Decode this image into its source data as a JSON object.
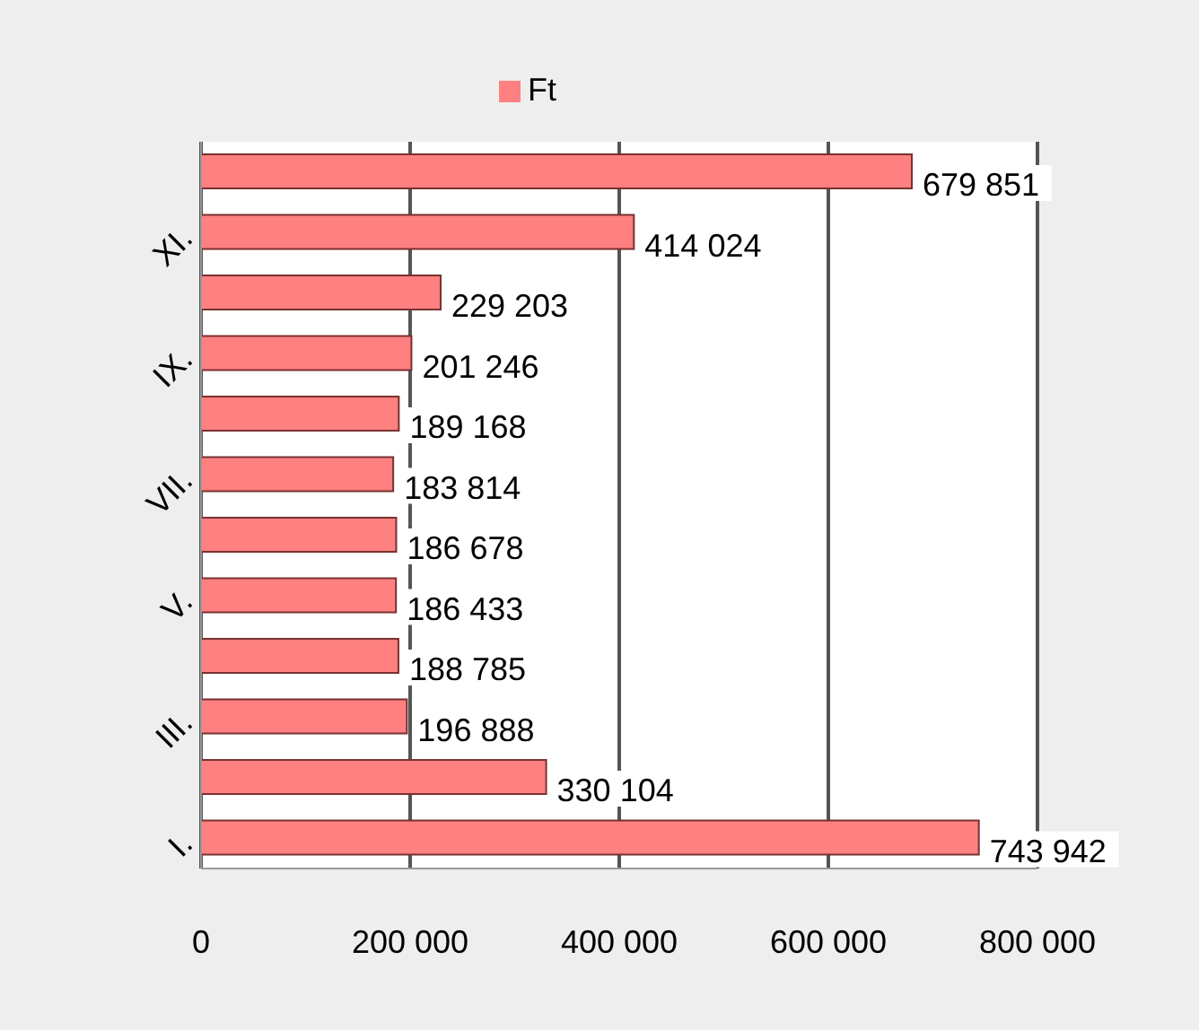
{
  "chart_data": {
    "type": "bar",
    "orientation": "horizontal",
    "categories": [
      null,
      "XI.",
      null,
      "IX.",
      null,
      "VII.",
      null,
      "V.",
      null,
      "III.",
      null,
      "I."
    ],
    "series": [
      {
        "name": "Ft",
        "color": "#ff8080",
        "values": [
          679851,
          414024,
          229203,
          201246,
          189168,
          183814,
          186678,
          186433,
          188785,
          196888,
          330104,
          743942
        ],
        "value_labels": [
          "679 851",
          "414 024",
          "229 203",
          "201 246",
          "189 168",
          "183 814",
          "186 678",
          "186 433",
          "188 785",
          "196 888",
          "330 104",
          "743 942"
        ]
      }
    ],
    "xlim": [
      0,
      800000
    ],
    "xticks": [
      {
        "value": 0,
        "label": "0"
      },
      {
        "value": 200000,
        "label": "200 000"
      },
      {
        "value": 400000,
        "label": "400 000"
      },
      {
        "value": 600000,
        "label": "600 000"
      },
      {
        "value": 800000,
        "label": "800 000"
      }
    ],
    "grid": "x",
    "legend": "top"
  }
}
